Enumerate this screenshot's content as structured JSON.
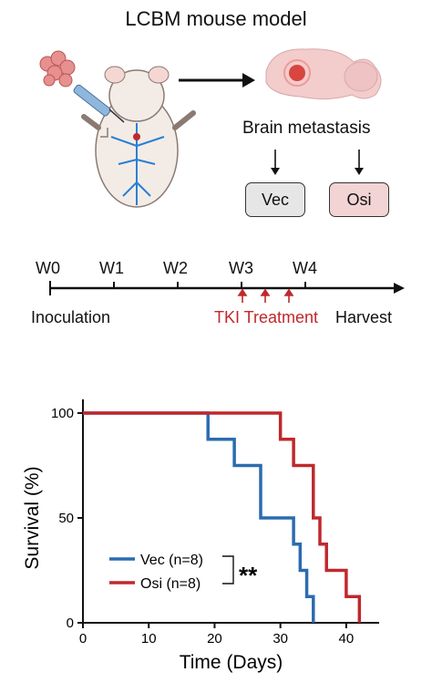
{
  "figure": {
    "title": "LCBM mouse model",
    "metastasis_label": "Brain metastasis",
    "groups": [
      {
        "label": "Vec",
        "color": "#e6e6e6"
      },
      {
        "label": "Osi",
        "color": "#f3d4d4"
      }
    ]
  },
  "timeline": {
    "weeks": [
      "W0",
      "W1",
      "W2",
      "W3",
      "W4"
    ],
    "start_label": "Inoculation",
    "treatment_label": "TKI Treatment",
    "end_label": "Harvest",
    "treatment_color": "#c0282d"
  },
  "chart_data": {
    "type": "line",
    "subtype": "kaplan-meier survival",
    "xlabel": "Time (Days)",
    "ylabel": "Survival (%)",
    "xticks": [
      "0",
      "10",
      "20",
      "30",
      "40"
    ],
    "yticks": [
      "0",
      "50",
      "100"
    ],
    "xlim": [
      0,
      45
    ],
    "ylim": [
      0,
      100
    ],
    "significance": "**",
    "series": [
      {
        "name": "Vec (n=8)",
        "color": "#2b6cb0",
        "points": [
          [
            0,
            100
          ],
          [
            19,
            100
          ],
          [
            19,
            87.5
          ],
          [
            23,
            87.5
          ],
          [
            23,
            75
          ],
          [
            27,
            75
          ],
          [
            27,
            50
          ],
          [
            32,
            50
          ],
          [
            32,
            37.5
          ],
          [
            33,
            37.5
          ],
          [
            33,
            25
          ],
          [
            34,
            25
          ],
          [
            34,
            12.5
          ],
          [
            35,
            12.5
          ],
          [
            35,
            0
          ]
        ]
      },
      {
        "name": "Osi (n=8)",
        "color": "#c0282d",
        "points": [
          [
            0,
            100
          ],
          [
            30,
            100
          ],
          [
            30,
            87.5
          ],
          [
            32,
            87.5
          ],
          [
            32,
            75
          ],
          [
            35,
            75
          ],
          [
            35,
            50
          ],
          [
            36,
            50
          ],
          [
            36,
            37.5
          ],
          [
            37,
            37.5
          ],
          [
            37,
            25
          ],
          [
            40,
            25
          ],
          [
            40,
            12.5
          ],
          [
            42,
            12.5
          ],
          [
            42,
            0
          ]
        ]
      }
    ]
  }
}
